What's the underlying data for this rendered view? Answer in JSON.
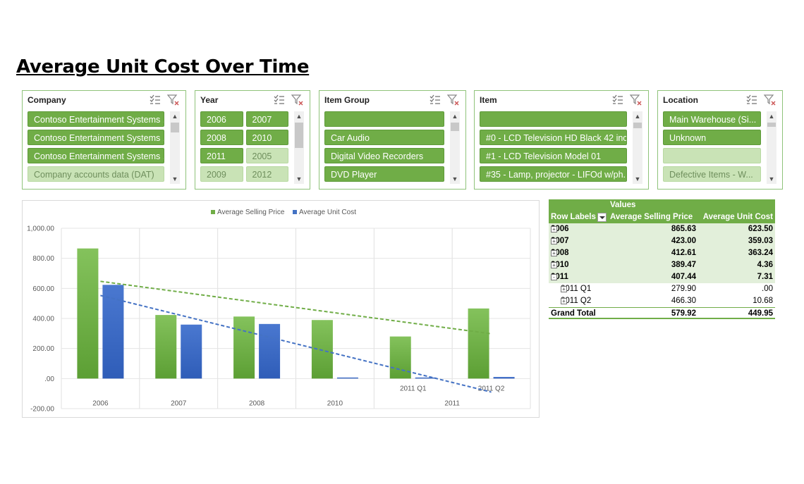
{
  "page": {
    "title": "Average Unit Cost Over Time"
  },
  "slicers": [
    {
      "id": "company",
      "title": "Company",
      "cols": 1,
      "items": [
        {
          "label": "Contoso Entertainment Systems ...",
          "selected": true
        },
        {
          "label": "Contoso Entertainment Systems ...",
          "selected": true
        },
        {
          "label": "Contoso Entertainment Systems ...",
          "selected": true
        },
        {
          "label": "Company accounts data (DAT)",
          "selected": false
        }
      ]
    },
    {
      "id": "year",
      "title": "Year",
      "cols": 2,
      "items": [
        {
          "label": "2006",
          "selected": true
        },
        {
          "label": "2007",
          "selected": true
        },
        {
          "label": "2008",
          "selected": true
        },
        {
          "label": "2010",
          "selected": true
        },
        {
          "label": "2011",
          "selected": true
        },
        {
          "label": "2005",
          "selected": false
        },
        {
          "label": "2009",
          "selected": false
        },
        {
          "label": "2012",
          "selected": false
        }
      ]
    },
    {
      "id": "item-group",
      "title": "Item Group",
      "cols": 1,
      "items": [
        {
          "label": "",
          "selected": true
        },
        {
          "label": "Car Audio",
          "selected": true
        },
        {
          "label": "Digital Video Recorders",
          "selected": true
        },
        {
          "label": "DVD Player",
          "selected": true
        }
      ]
    },
    {
      "id": "item",
      "title": "Item",
      "cols": 1,
      "items": [
        {
          "label": "",
          "selected": true
        },
        {
          "label": "#0 - LCD Television HD Black 42 inc...",
          "selected": true
        },
        {
          "label": "#1 - LCD Television Model 01",
          "selected": true
        },
        {
          "label": "#35 - Lamp, projector - LIFOd w/ph...",
          "selected": true
        }
      ]
    },
    {
      "id": "location",
      "title": "Location",
      "cols": 1,
      "items": [
        {
          "label": "Main Warehouse (Si...",
          "selected": true
        },
        {
          "label": "Unknown",
          "selected": true
        },
        {
          "label": "",
          "selected": false
        },
        {
          "label": "Defective Items  - W...",
          "selected": false
        }
      ]
    }
  ],
  "chart_data": {
    "type": "bar",
    "legend_position": "top",
    "series": [
      {
        "name": "Average Selling Price",
        "color": "#70ad47",
        "values": [
          865.63,
          423.0,
          412.61,
          389.47,
          279.9,
          466.3
        ]
      },
      {
        "name": "Average Unit Cost",
        "color": "#4472c4",
        "values": [
          623.5,
          359.03,
          363.24,
          4.36,
          0.0,
          10.68
        ]
      }
    ],
    "categories": [
      {
        "label": "",
        "group": "2006"
      },
      {
        "label": "",
        "group": "2007"
      },
      {
        "label": "",
        "group": "2008"
      },
      {
        "label": "",
        "group": "2010"
      },
      {
        "label": "2011 Q1",
        "group": "2011"
      },
      {
        "label": "2011 Q2",
        "group": "2011"
      }
    ],
    "groups": [
      "2006",
      "2007",
      "2008",
      "2010",
      "2011"
    ],
    "yaxis": {
      "min": -200,
      "max": 1000,
      "step": 200,
      "tick_labels": [
        "-200.00",
        ".00",
        "200.00",
        "400.00",
        "600.00",
        "800.00",
        "1,000.00"
      ]
    },
    "trendlines": [
      {
        "series": "Average Selling Price",
        "type": "linear",
        "style": "dashed",
        "color": "#70ad47",
        "start": 647,
        "end": 298
      },
      {
        "series": "Average Unit Cost",
        "type": "linear",
        "style": "dashed",
        "color": "#4472c4",
        "start": 553,
        "end": -90
      }
    ],
    "grid": true,
    "title": "",
    "xlabel": "",
    "ylabel": ""
  },
  "pivot": {
    "header_values": "Values",
    "header_row_labels": "Row Labels",
    "header_col1": "Average Selling Price",
    "header_col2": "Average Unit Cost",
    "rows": [
      {
        "label": "2006",
        "v1": "865.63",
        "v2": "623.50",
        "level": 0,
        "expander": "+"
      },
      {
        "label": "2007",
        "v1": "423.00",
        "v2": "359.03",
        "level": 0,
        "expander": "+"
      },
      {
        "label": "2008",
        "v1": "412.61",
        "v2": "363.24",
        "level": 0,
        "expander": "+"
      },
      {
        "label": "2010",
        "v1": "389.47",
        "v2": "4.36",
        "level": 0,
        "expander": "+"
      },
      {
        "label": "2011",
        "v1": "407.44",
        "v2": "7.31",
        "level": 0,
        "expander": "-"
      },
      {
        "label": "2011 Q1",
        "v1": "279.90",
        "v2": ".00",
        "level": 1,
        "expander": "+"
      },
      {
        "label": "2011 Q2",
        "v1": "466.30",
        "v2": "10.68",
        "level": 1,
        "expander": "+"
      }
    ],
    "total": {
      "label": "Grand Total",
      "v1": "579.92",
      "v2": "449.95"
    }
  }
}
